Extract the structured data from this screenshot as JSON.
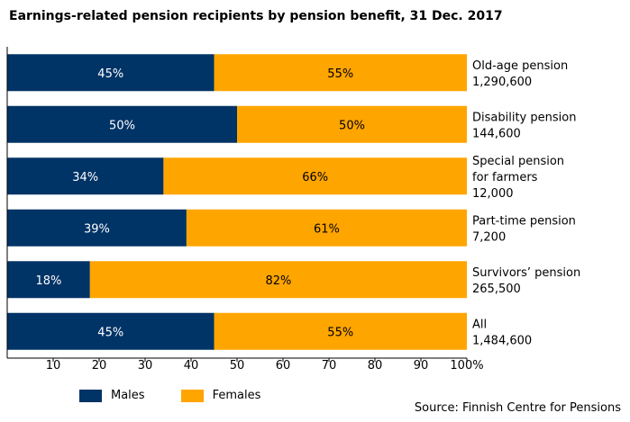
{
  "chart_data": {
    "type": "bar",
    "orientation": "horizontal",
    "stacked": true,
    "title": "Earnings-related pension recipients by pension benefit, 31 Dec. 2017",
    "categories": [
      {
        "lines": [
          "Old-age pension",
          "1,290,600"
        ]
      },
      {
        "lines": [
          "Disability pension",
          "144,600"
        ]
      },
      {
        "lines": [
          "Special pension",
          "for farmers",
          "12,000"
        ]
      },
      {
        "lines": [
          "Part-time pension",
          "7,200"
        ]
      },
      {
        "lines": [
          "Survivors’ pension",
          "265,500"
        ]
      },
      {
        "lines": [
          "All",
          "1,484,600"
        ]
      }
    ],
    "series": [
      {
        "name": "Males",
        "color": "#003366",
        "label_color": "#ffffff",
        "values": [
          45,
          50,
          34,
          39,
          18,
          45
        ],
        "labels": [
          "45%",
          "50%",
          "34%",
          "39%",
          "18%",
          "45%"
        ]
      },
      {
        "name": "Females",
        "color": "#FFA500",
        "label_color": "#000000",
        "values": [
          55,
          50,
          66,
          61,
          82,
          55
        ],
        "labels": [
          "55%",
          "50%",
          "66%",
          "61%",
          "82%",
          "55%"
        ]
      }
    ],
    "xlim": [
      0,
      100
    ],
    "xticks": [
      "10",
      "20",
      "30",
      "40",
      "50",
      "60",
      "70",
      "80",
      "90",
      "100%"
    ],
    "xtick_values": [
      10,
      20,
      30,
      40,
      50,
      60,
      70,
      80,
      90,
      100
    ],
    "legend_position": "bottom-left",
    "source": "Source: Finnish Centre for Pensions"
  }
}
